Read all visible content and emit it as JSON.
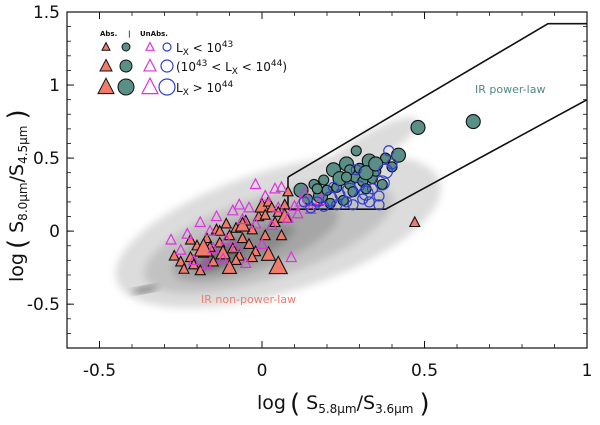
{
  "chart_data": {
    "type": "scatter",
    "xlabel": {
      "prefix": "log",
      "main": "S",
      "sub1": "5.8μm",
      "slash": "/S",
      "sub2": "3.6μm"
    },
    "ylabel": {
      "prefix": "log",
      "main": "S",
      "sub1": "8.0μm",
      "slash": "/S",
      "sub2": "4.5μm"
    },
    "xlim": [
      -0.6,
      1.0
    ],
    "ylim": [
      -0.8,
      1.5
    ],
    "x_ticks": [
      -0.5,
      0,
      0.5,
      1
    ],
    "x_tick_labels": [
      "-0.5",
      "0",
      "0.5",
      "1"
    ],
    "y_ticks": [
      -0.5,
      0,
      0.5,
      1,
      1.5
    ],
    "y_tick_labels": [
      "-0.5",
      "0",
      "0.5",
      "1",
      "1.5"
    ],
    "grid": false,
    "colors": {
      "abs_triangle": "#f07b6b",
      "abs_circle": "#5a8f88",
      "unabs_triangle": "#dd33dd",
      "unabs_circle": "#2f3fd0",
      "ir_powerlaw_label": "#4f8a84",
      "ir_nonpowerlaw_label": "#f07b6b",
      "density_levels": [
        "#dcdcdc",
        "#c2c2c2",
        "#a6a6a6",
        "#8a8a8a",
        "#6e6e6e"
      ]
    },
    "legend": {
      "placement": "top-left",
      "header_abs": "Abs.",
      "header_sep": "|",
      "header_unabs": "UnAbs.",
      "rows": [
        {
          "label": "L",
          "sub": "X",
          "rest": " < 10",
          "sup": "43"
        },
        {
          "label": "(10",
          "sup": "43",
          "rest": " < L",
          "sub": "X",
          "rest2": " < 10",
          "sup2": "44",
          "end": ")"
        },
        {
          "label": "L",
          "sub": "X",
          "rest": " > 10",
          "sup": "44"
        }
      ]
    },
    "annotations": {
      "ir_powerlaw": "IR power-law",
      "ir_nonpowerlaw": "IR non-power-law"
    },
    "wedge": {
      "upper": [
        [
          0.08,
          0.37
        ],
        [
          0.88,
          1.42
        ],
        [
          1.0,
          1.42
        ]
      ],
      "lower": [
        [
          0.08,
          0.15
        ],
        [
          0.38,
          0.15
        ],
        [
          1.0,
          0.9
        ]
      ],
      "left_edge": [
        [
          0.08,
          0.15
        ],
        [
          0.08,
          0.37
        ]
      ],
      "inner_upper": [
        [
          0.14,
          0.18
        ],
        [
          0.19,
          0.18
        ]
      ]
    },
    "series": [
      {
        "name": "Abs. triangles",
        "marker": "triangle",
        "filled": true,
        "points": [
          [
            -0.27,
            -0.17,
            1
          ],
          [
            -0.25,
            -0.21,
            1
          ],
          [
            -0.24,
            -0.26,
            1
          ],
          [
            -0.22,
            -0.18,
            1
          ],
          [
            -0.21,
            -0.23,
            1
          ],
          [
            -0.2,
            -0.1,
            1
          ],
          [
            -0.19,
            -0.27,
            1
          ],
          [
            -0.18,
            -0.15,
            1
          ],
          [
            -0.17,
            -0.05,
            1
          ],
          [
            -0.16,
            -0.11,
            1
          ],
          [
            -0.15,
            -0.21,
            1
          ],
          [
            -0.14,
            0.01,
            1
          ],
          [
            -0.13,
            -0.08,
            1
          ],
          [
            -0.12,
            -0.15,
            2
          ],
          [
            -0.11,
            0.05,
            1
          ],
          [
            -0.1,
            -0.03,
            1
          ],
          [
            -0.09,
            -0.12,
            1
          ],
          [
            -0.08,
            0.02,
            1
          ],
          [
            -0.07,
            -0.17,
            1
          ],
          [
            -0.06,
            -0.05,
            1
          ],
          [
            -0.05,
            0.07,
            1
          ],
          [
            -0.04,
            -0.09,
            1
          ],
          [
            -0.03,
            0.01,
            1
          ],
          [
            -0.02,
            -0.14,
            1
          ],
          [
            -0.01,
            0.1,
            1
          ],
          [
            0.0,
            0.17,
            2
          ],
          [
            0.01,
            0.11,
            1
          ],
          [
            0.02,
            0.2,
            1
          ],
          [
            0.03,
            0.16,
            1
          ],
          [
            0.04,
            0.06,
            1
          ],
          [
            0.05,
            0.13,
            1
          ],
          [
            0.06,
            -0.03,
            1
          ],
          [
            0.07,
            0.18,
            1
          ],
          [
            0.08,
            0.27,
            1
          ],
          [
            -0.03,
            -0.18,
            1
          ],
          [
            0.02,
            -0.16,
            2
          ],
          [
            -0.08,
            -0.2,
            1
          ],
          [
            0.05,
            -0.24,
            3
          ],
          [
            -0.1,
            -0.25,
            2
          ],
          [
            -0.18,
            -0.12,
            3
          ],
          [
            0.01,
            -0.03,
            1
          ],
          [
            -0.13,
            0.0,
            1
          ],
          [
            -0.06,
            0.04,
            2
          ],
          [
            0.47,
            0.06,
            1
          ],
          [
            -0.22,
            -0.06,
            1
          ],
          [
            0.07,
            0.1,
            2
          ]
        ]
      },
      {
        "name": "Abs. circles",
        "marker": "circle",
        "filled": true,
        "points": [
          [
            0.12,
            0.28,
            2
          ],
          [
            0.14,
            0.22,
            1
          ],
          [
            0.16,
            0.32,
            1
          ],
          [
            0.18,
            0.24,
            2
          ],
          [
            0.19,
            0.35,
            1
          ],
          [
            0.2,
            0.28,
            1
          ],
          [
            0.21,
            0.19,
            1
          ],
          [
            0.22,
            0.42,
            2
          ],
          [
            0.23,
            0.3,
            1
          ],
          [
            0.24,
            0.36,
            2
          ],
          [
            0.25,
            0.21,
            1
          ],
          [
            0.26,
            0.46,
            2
          ],
          [
            0.27,
            0.32,
            1
          ],
          [
            0.28,
            0.27,
            1
          ],
          [
            0.29,
            0.38,
            2
          ],
          [
            0.3,
            0.43,
            1
          ],
          [
            0.31,
            0.34,
            1
          ],
          [
            0.32,
            0.29,
            1
          ],
          [
            0.33,
            0.48,
            2
          ],
          [
            0.34,
            0.36,
            1
          ],
          [
            0.35,
            0.41,
            1
          ],
          [
            0.37,
            0.32,
            1
          ],
          [
            0.4,
            0.44,
            1
          ],
          [
            0.42,
            0.52,
            2
          ],
          [
            0.48,
            0.71,
            2
          ],
          [
            0.65,
            0.75,
            2
          ],
          [
            0.29,
            0.55,
            1
          ],
          [
            0.27,
            0.42,
            1
          ],
          [
            0.17,
            0.29,
            1
          ],
          [
            0.32,
            0.4,
            2
          ],
          [
            0.38,
            0.5,
            1
          ],
          [
            0.26,
            0.37,
            1
          ],
          [
            0.35,
            0.46,
            2
          ]
        ]
      },
      {
        "name": "UnAbs. triangles",
        "marker": "triangle",
        "filled": false,
        "points": [
          [
            -0.28,
            -0.06,
            1
          ],
          [
            -0.25,
            -0.13,
            1
          ],
          [
            -0.23,
            -0.02,
            1
          ],
          [
            -0.21,
            -0.2,
            1
          ],
          [
            -0.19,
            0.06,
            1
          ],
          [
            -0.17,
            -0.23,
            1
          ],
          [
            -0.15,
            -0.12,
            1
          ],
          [
            -0.14,
            0.1,
            1
          ],
          [
            -0.12,
            -0.19,
            1
          ],
          [
            -0.11,
            -0.06,
            1
          ],
          [
            -0.09,
            0.14,
            1
          ],
          [
            -0.08,
            -0.11,
            1
          ],
          [
            -0.06,
            0.08,
            1
          ],
          [
            -0.05,
            -0.22,
            1
          ],
          [
            -0.04,
            0.16,
            1
          ],
          [
            -0.02,
            0.05,
            1
          ],
          [
            0.0,
            -0.09,
            1
          ],
          [
            0.01,
            0.24,
            1
          ],
          [
            0.03,
            0.04,
            1
          ],
          [
            0.05,
            0.16,
            1
          ],
          [
            0.06,
            0.3,
            1
          ],
          [
            0.08,
            0.09,
            1
          ],
          [
            0.1,
            0.17,
            1
          ],
          [
            0.12,
            0.2,
            1
          ],
          [
            0.13,
            0.26,
            1
          ],
          [
            0.15,
            0.15,
            1
          ],
          [
            -0.02,
            0.32,
            1
          ],
          [
            0.04,
            0.29,
            1
          ],
          [
            -0.07,
            0.18,
            1
          ],
          [
            0.18,
            0.21,
            1
          ],
          [
            0.09,
            -0.18,
            1
          ],
          [
            -0.16,
            0.0,
            1
          ],
          [
            0.11,
            0.12,
            1
          ]
        ]
      },
      {
        "name": "UnAbs. circles",
        "marker": "circle",
        "filled": false,
        "points": [
          [
            0.13,
            0.2,
            1
          ],
          [
            0.15,
            0.16,
            1
          ],
          [
            0.17,
            0.2,
            1
          ],
          [
            0.19,
            0.17,
            1
          ],
          [
            0.21,
            0.22,
            2
          ],
          [
            0.23,
            0.18,
            1
          ],
          [
            0.24,
            0.25,
            1
          ],
          [
            0.26,
            0.2,
            1
          ],
          [
            0.27,
            0.28,
            2
          ],
          [
            0.28,
            0.18,
            1
          ],
          [
            0.3,
            0.31,
            1
          ],
          [
            0.31,
            0.22,
            1
          ],
          [
            0.32,
            0.26,
            2
          ],
          [
            0.33,
            0.2,
            1
          ],
          [
            0.34,
            0.29,
            1
          ],
          [
            0.36,
            0.24,
            1
          ],
          [
            0.37,
            0.33,
            2
          ],
          [
            0.38,
            0.41,
            2
          ],
          [
            0.39,
            0.55,
            1
          ],
          [
            0.4,
            0.46,
            1
          ],
          [
            0.36,
            0.18,
            1
          ],
          [
            0.29,
            0.42,
            1
          ],
          [
            0.22,
            0.3,
            1
          ]
        ]
      }
    ]
  }
}
